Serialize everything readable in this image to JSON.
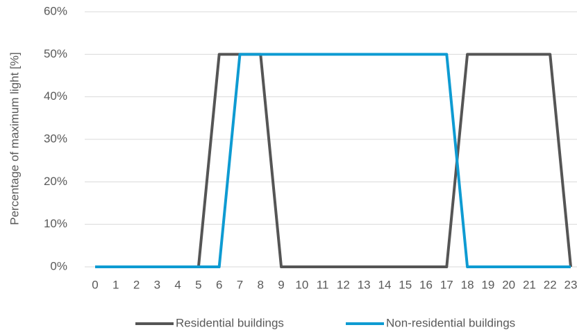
{
  "chart_data": {
    "type": "line",
    "y_label": "Percentage of maximum light [%]",
    "categories": [
      "0",
      "1",
      "2",
      "3",
      "4",
      "5",
      "6",
      "7",
      "8",
      "9",
      "10",
      "11",
      "12",
      "13",
      "14",
      "15",
      "16",
      "17",
      "18",
      "19",
      "20",
      "21",
      "22",
      "23"
    ],
    "series": [
      {
        "name": "Residential buildings",
        "color": "#555555",
        "values": [
          0,
          0,
          0,
          0,
          0,
          0,
          50,
          50,
          50,
          0,
          0,
          0,
          0,
          0,
          0,
          0,
          0,
          0,
          50,
          50,
          50,
          50,
          50,
          0
        ]
      },
      {
        "name": "Non-residential buildings",
        "color": "#0e9bd2",
        "values": [
          0,
          0,
          0,
          0,
          0,
          0,
          0,
          50,
          50,
          50,
          50,
          50,
          50,
          50,
          50,
          50,
          50,
          50,
          0,
          0,
          0,
          0,
          0,
          0
        ]
      }
    ],
    "ylim": [
      0,
      60
    ],
    "yticks": [
      {
        "value": 0,
        "label": "0%"
      },
      {
        "value": 10,
        "label": "10%"
      },
      {
        "value": 20,
        "label": "20%"
      },
      {
        "value": 30,
        "label": "30%"
      },
      {
        "value": 40,
        "label": "40%"
      },
      {
        "value": 50,
        "label": "50%"
      },
      {
        "value": 60,
        "label": "60%"
      }
    ],
    "grid": true,
    "legend": "bottom"
  }
}
